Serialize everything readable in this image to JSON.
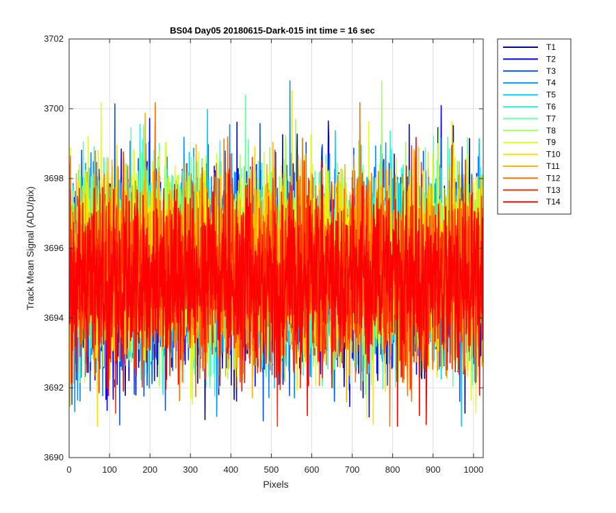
{
  "chart_data": {
    "type": "line",
    "title": "BS04 Day05 20180615-Dark-015 int time = 16 sec",
    "xlabel": "Pixels",
    "ylabel": "Track Mean Signal (ADU/pix)",
    "xlim": [
      0,
      1024
    ],
    "ylim": [
      3690,
      3702
    ],
    "xticks": [
      0,
      100,
      200,
      300,
      400,
      500,
      600,
      700,
      800,
      900,
      1000
    ],
    "yticks": [
      3690,
      3692,
      3694,
      3696,
      3698,
      3700,
      3702
    ],
    "grid": true,
    "legend_position": "outside-top-right",
    "points_per_series": 1024,
    "series": [
      {
        "name": "T1",
        "color": "#00008f",
        "mean": 3695.2,
        "std": 1.45
      },
      {
        "name": "T2",
        "color": "#0000ff",
        "mean": 3695.3,
        "std": 1.45
      },
      {
        "name": "T3",
        "color": "#0050ff",
        "mean": 3695.3,
        "std": 1.4
      },
      {
        "name": "T4",
        "color": "#0090ff",
        "mean": 3695.4,
        "std": 1.4
      },
      {
        "name": "T5",
        "color": "#00d0ff",
        "mean": 3695.5,
        "std": 1.4
      },
      {
        "name": "T6",
        "color": "#20ffdf",
        "mean": 3695.6,
        "std": 1.4
      },
      {
        "name": "T7",
        "color": "#60ffa0",
        "mean": 3695.6,
        "std": 1.35
      },
      {
        "name": "T8",
        "color": "#a0ff60",
        "mean": 3695.6,
        "std": 1.35
      },
      {
        "name": "T9",
        "color": "#dfff20",
        "mean": 3695.6,
        "std": 1.35
      },
      {
        "name": "T10",
        "color": "#ffe000",
        "mean": 3695.5,
        "std": 1.35
      },
      {
        "name": "T11",
        "color": "#ffb000",
        "mean": 3695.4,
        "std": 1.35
      },
      {
        "name": "T12",
        "color": "#ff7000",
        "mean": 3695.3,
        "std": 1.3
      },
      {
        "name": "T13",
        "color": "#ff3000",
        "mean": 3695.2,
        "std": 1.3
      },
      {
        "name": "T14",
        "color": "#ff0000",
        "mean": 3695.1,
        "std": 1.25
      }
    ]
  }
}
